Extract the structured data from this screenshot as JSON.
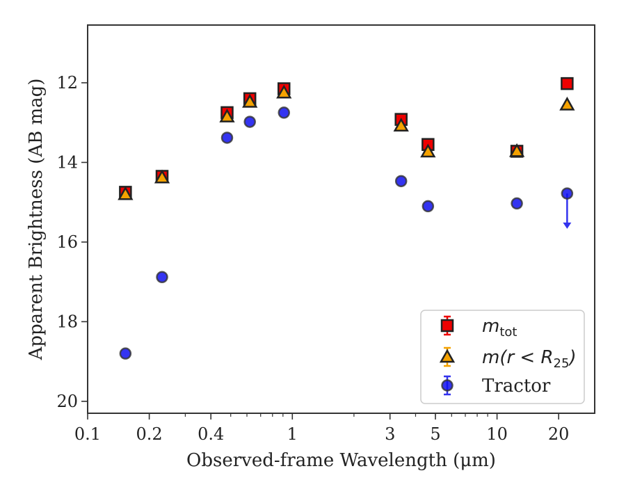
{
  "chart_data": {
    "type": "scatter",
    "xlabel": "Observed-frame Wavelength (μm)",
    "ylabel": "Apparent Brightness (AB mag)",
    "xscale": "log",
    "xlim": [
      0.1,
      30
    ],
    "ylim": [
      20.3,
      10.55
    ],
    "y_inverted": true,
    "xticks": [
      {
        "value": 0.1,
        "label": "0.1"
      },
      {
        "value": 0.2,
        "label": "0.2"
      },
      {
        "value": 0.4,
        "label": "0.4"
      },
      {
        "value": 1,
        "label": "1"
      },
      {
        "value": 3,
        "label": "3"
      },
      {
        "value": 5,
        "label": "5"
      },
      {
        "value": 10,
        "label": "10"
      },
      {
        "value": 20,
        "label": "20"
      }
    ],
    "yticks": [
      {
        "value": 12,
        "label": "12"
      },
      {
        "value": 14,
        "label": "14"
      },
      {
        "value": 16,
        "label": "16"
      },
      {
        "value": 18,
        "label": "18"
      },
      {
        "value": 20,
        "label": "20"
      }
    ],
    "legend_position": "lower right",
    "grid": false,
    "series": [
      {
        "key": "mtot",
        "legend_label": "m",
        "legend_sub": "tot",
        "marker": "square",
        "color": "#ee0000",
        "edge_color": "#222222",
        "points": [
          {
            "x": 0.153,
            "y": 14.75
          },
          {
            "x": 0.231,
            "y": 14.35
          },
          {
            "x": 0.48,
            "y": 12.75
          },
          {
            "x": 0.62,
            "y": 12.4
          },
          {
            "x": 0.91,
            "y": 12.15
          },
          {
            "x": 3.4,
            "y": 12.92
          },
          {
            "x": 4.6,
            "y": 13.55
          },
          {
            "x": 12.5,
            "y": 13.72
          },
          {
            "x": 22.0,
            "y": 12.02
          }
        ]
      },
      {
        "key": "mr25",
        "legend_label": "m(r < R",
        "legend_sub": "25",
        "legend_close": ")",
        "marker": "triangle",
        "color": "#f5a200",
        "edge_color": "#222222",
        "points": [
          {
            "x": 0.153,
            "y": 14.8
          },
          {
            "x": 0.231,
            "y": 14.38
          },
          {
            "x": 0.48,
            "y": 12.85
          },
          {
            "x": 0.62,
            "y": 12.48
          },
          {
            "x": 0.91,
            "y": 12.25
          },
          {
            "x": 3.4,
            "y": 13.08
          },
          {
            "x": 4.6,
            "y": 13.73
          },
          {
            "x": 12.5,
            "y": 13.72
          },
          {
            "x": 22.0,
            "y": 12.55
          }
        ]
      },
      {
        "key": "tractor",
        "legend_label": "Tractor",
        "marker": "circle",
        "color": "#1010ee",
        "edge_color": "#333333",
        "points": [
          {
            "x": 0.153,
            "y": 18.8
          },
          {
            "x": 0.231,
            "y": 16.88
          },
          {
            "x": 0.48,
            "y": 13.38
          },
          {
            "x": 0.62,
            "y": 12.98
          },
          {
            "x": 0.91,
            "y": 12.75
          },
          {
            "x": 3.4,
            "y": 14.47
          },
          {
            "x": 4.6,
            "y": 15.1
          },
          {
            "x": 12.5,
            "y": 15.03
          },
          {
            "x": 22.0,
            "y": 14.78,
            "upper_limit_to": 15.65
          }
        ]
      }
    ]
  }
}
